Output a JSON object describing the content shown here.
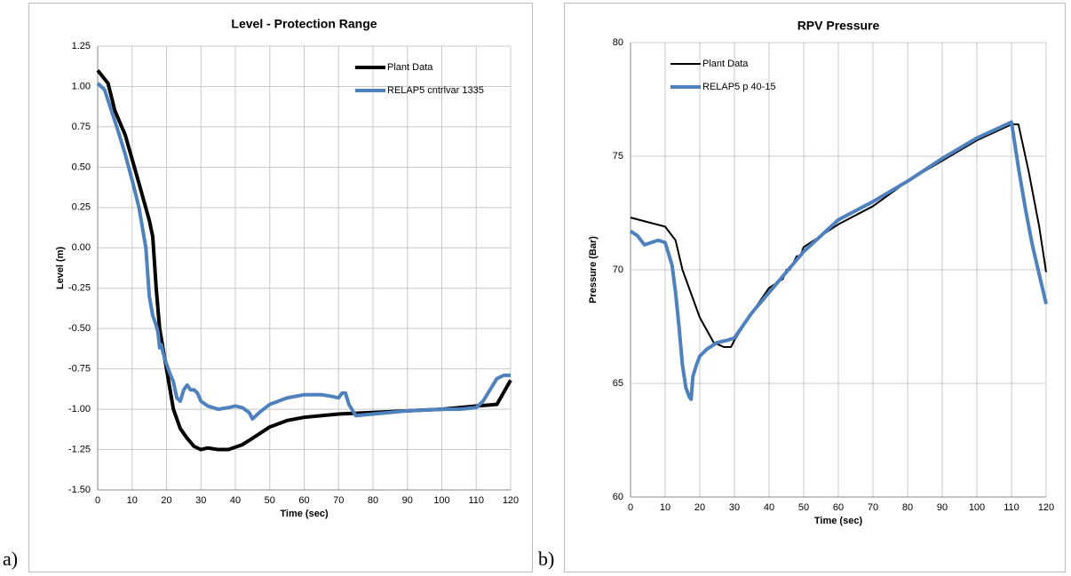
{
  "chart_data": [
    {
      "type": "line",
      "panel_label": "a)",
      "title": "Level - Protection Range",
      "xlabel": "Time (sec)",
      "ylabel": "Level (m)",
      "xlim": [
        0,
        120
      ],
      "xticks": [
        0,
        10,
        20,
        30,
        40,
        50,
        60,
        70,
        80,
        90,
        100,
        110,
        120
      ],
      "ylim": [
        -1.5,
        1.25
      ],
      "yticks": [
        {
          "value": -1.5,
          "label": "-1.50"
        },
        {
          "value": -1.25,
          "label": "-1.25"
        },
        {
          "value": -1,
          "label": "-1.00"
        },
        {
          "value": -0.75,
          "label": "-0.75"
        },
        {
          "value": -0.5,
          "label": "-0.50"
        },
        {
          "value": -0.25,
          "label": "-0.25"
        },
        {
          "value": 0,
          "label": "0.00"
        },
        {
          "value": 0.25,
          "label": "0.25"
        },
        {
          "value": 0.5,
          "label": "0.50"
        },
        {
          "value": 0.75,
          "label": "0.75"
        },
        {
          "value": 1,
          "label": "1.00"
        },
        {
          "value": 1.25,
          "label": "1.25"
        }
      ],
      "grid": true,
      "legend": "upper right",
      "series": [
        {
          "name": "Plant Data",
          "color": "#000000",
          "x": [
            0,
            3,
            5,
            8,
            10,
            12,
            15,
            16,
            17,
            18,
            20,
            22,
            24,
            26,
            28,
            30,
            32,
            35,
            38,
            42,
            45,
            50,
            55,
            60,
            70,
            80,
            90,
            100,
            110,
            116,
            120
          ],
          "values": [
            1.1,
            1.02,
            0.85,
            0.7,
            0.55,
            0.4,
            0.17,
            0.07,
            -0.25,
            -0.5,
            -0.75,
            -1.0,
            -1.12,
            -1.18,
            -1.23,
            -1.25,
            -1.24,
            -1.25,
            -1.25,
            -1.22,
            -1.18,
            -1.11,
            -1.07,
            -1.05,
            -1.03,
            -1.02,
            -1.01,
            -1.0,
            -0.98,
            -0.97,
            -0.82
          ]
        },
        {
          "name": "RELAP5 cntrlvar 1335",
          "color": "#4f81bd",
          "x": [
            0,
            2,
            4,
            6,
            8,
            10,
            12,
            14,
            15,
            16,
            17,
            17.5,
            18,
            18.5,
            19,
            20,
            21,
            22,
            23,
            24,
            25,
            26,
            27,
            28,
            29,
            30,
            32,
            35,
            38,
            40,
            42,
            44,
            45,
            47,
            50,
            55,
            60,
            65,
            68,
            70,
            71,
            72,
            73,
            75,
            80,
            90,
            100,
            105,
            110,
            112,
            114,
            116,
            118,
            120
          ],
          "values": [
            1.02,
            0.98,
            0.85,
            0.72,
            0.58,
            0.42,
            0.25,
            0,
            -0.3,
            -0.42,
            -0.48,
            -0.52,
            -0.62,
            -0.6,
            -0.65,
            -0.72,
            -0.78,
            -0.83,
            -0.93,
            -0.95,
            -0.88,
            -0.85,
            -0.88,
            -0.88,
            -0.9,
            -0.95,
            -0.98,
            -1.0,
            -0.99,
            -0.98,
            -0.99,
            -1.02,
            -1.06,
            -1.02,
            -0.97,
            -0.93,
            -0.91,
            -0.91,
            -0.92,
            -0.93,
            -0.9,
            -0.9,
            -0.97,
            -1.04,
            -1.03,
            -1.01,
            -1.0,
            -1.0,
            -0.99,
            -0.95,
            -0.88,
            -0.81,
            -0.79,
            -0.79
          ]
        }
      ]
    },
    {
      "type": "line",
      "panel_label": "b)",
      "title": "RPV Pressure",
      "xlabel": "Time (sec)",
      "ylabel": "Pressure (Bar)",
      "xlim": [
        0,
        120
      ],
      "xticks": [
        0,
        10,
        20,
        30,
        40,
        50,
        60,
        70,
        80,
        90,
        100,
        110,
        120
      ],
      "ylim": [
        60,
        80
      ],
      "yticks": [
        60,
        65,
        70,
        75,
        80
      ],
      "grid": true,
      "legend": "upper left",
      "series": [
        {
          "name": "Plant Data",
          "color": "#000000",
          "x": [
            0,
            5,
            10,
            13,
            15,
            20,
            24,
            27,
            29,
            30,
            35,
            40,
            44,
            45,
            46,
            48,
            49,
            50,
            55,
            60,
            70,
            80,
            90,
            100,
            110,
            112,
            115,
            118,
            120
          ],
          "values": [
            72.3,
            72.1,
            71.9,
            71.3,
            70,
            67.9,
            66.8,
            66.6,
            66.6,
            66.9,
            68.1,
            69.2,
            69.6,
            70,
            70,
            70.6,
            70.6,
            71,
            71.5,
            72,
            72.8,
            73.9,
            74.8,
            75.7,
            76.4,
            76.4,
            74.3,
            71.9,
            69.9
          ]
        },
        {
          "name": "RELAP5 p 40-15",
          "color": "#4f81bd",
          "x": [
            0,
            2,
            4,
            6,
            8,
            10,
            12,
            13,
            14,
            15,
            16,
            17,
            17.5,
            18,
            19,
            20,
            22,
            25,
            28,
            30,
            35,
            40,
            50,
            60,
            70,
            80,
            90,
            100,
            110,
            112,
            114,
            116,
            118,
            120
          ],
          "values": [
            71.7,
            71.5,
            71.1,
            71.2,
            71.3,
            71.2,
            70.2,
            69,
            67.5,
            65.8,
            64.8,
            64.4,
            64.3,
            65.3,
            65.8,
            66.2,
            66.5,
            66.8,
            66.9,
            67,
            68.1,
            69,
            70.8,
            72.2,
            73,
            73.9,
            74.9,
            75.8,
            76.5,
            74.5,
            72.7,
            71.1,
            69.8,
            68.5
          ]
        }
      ]
    }
  ]
}
